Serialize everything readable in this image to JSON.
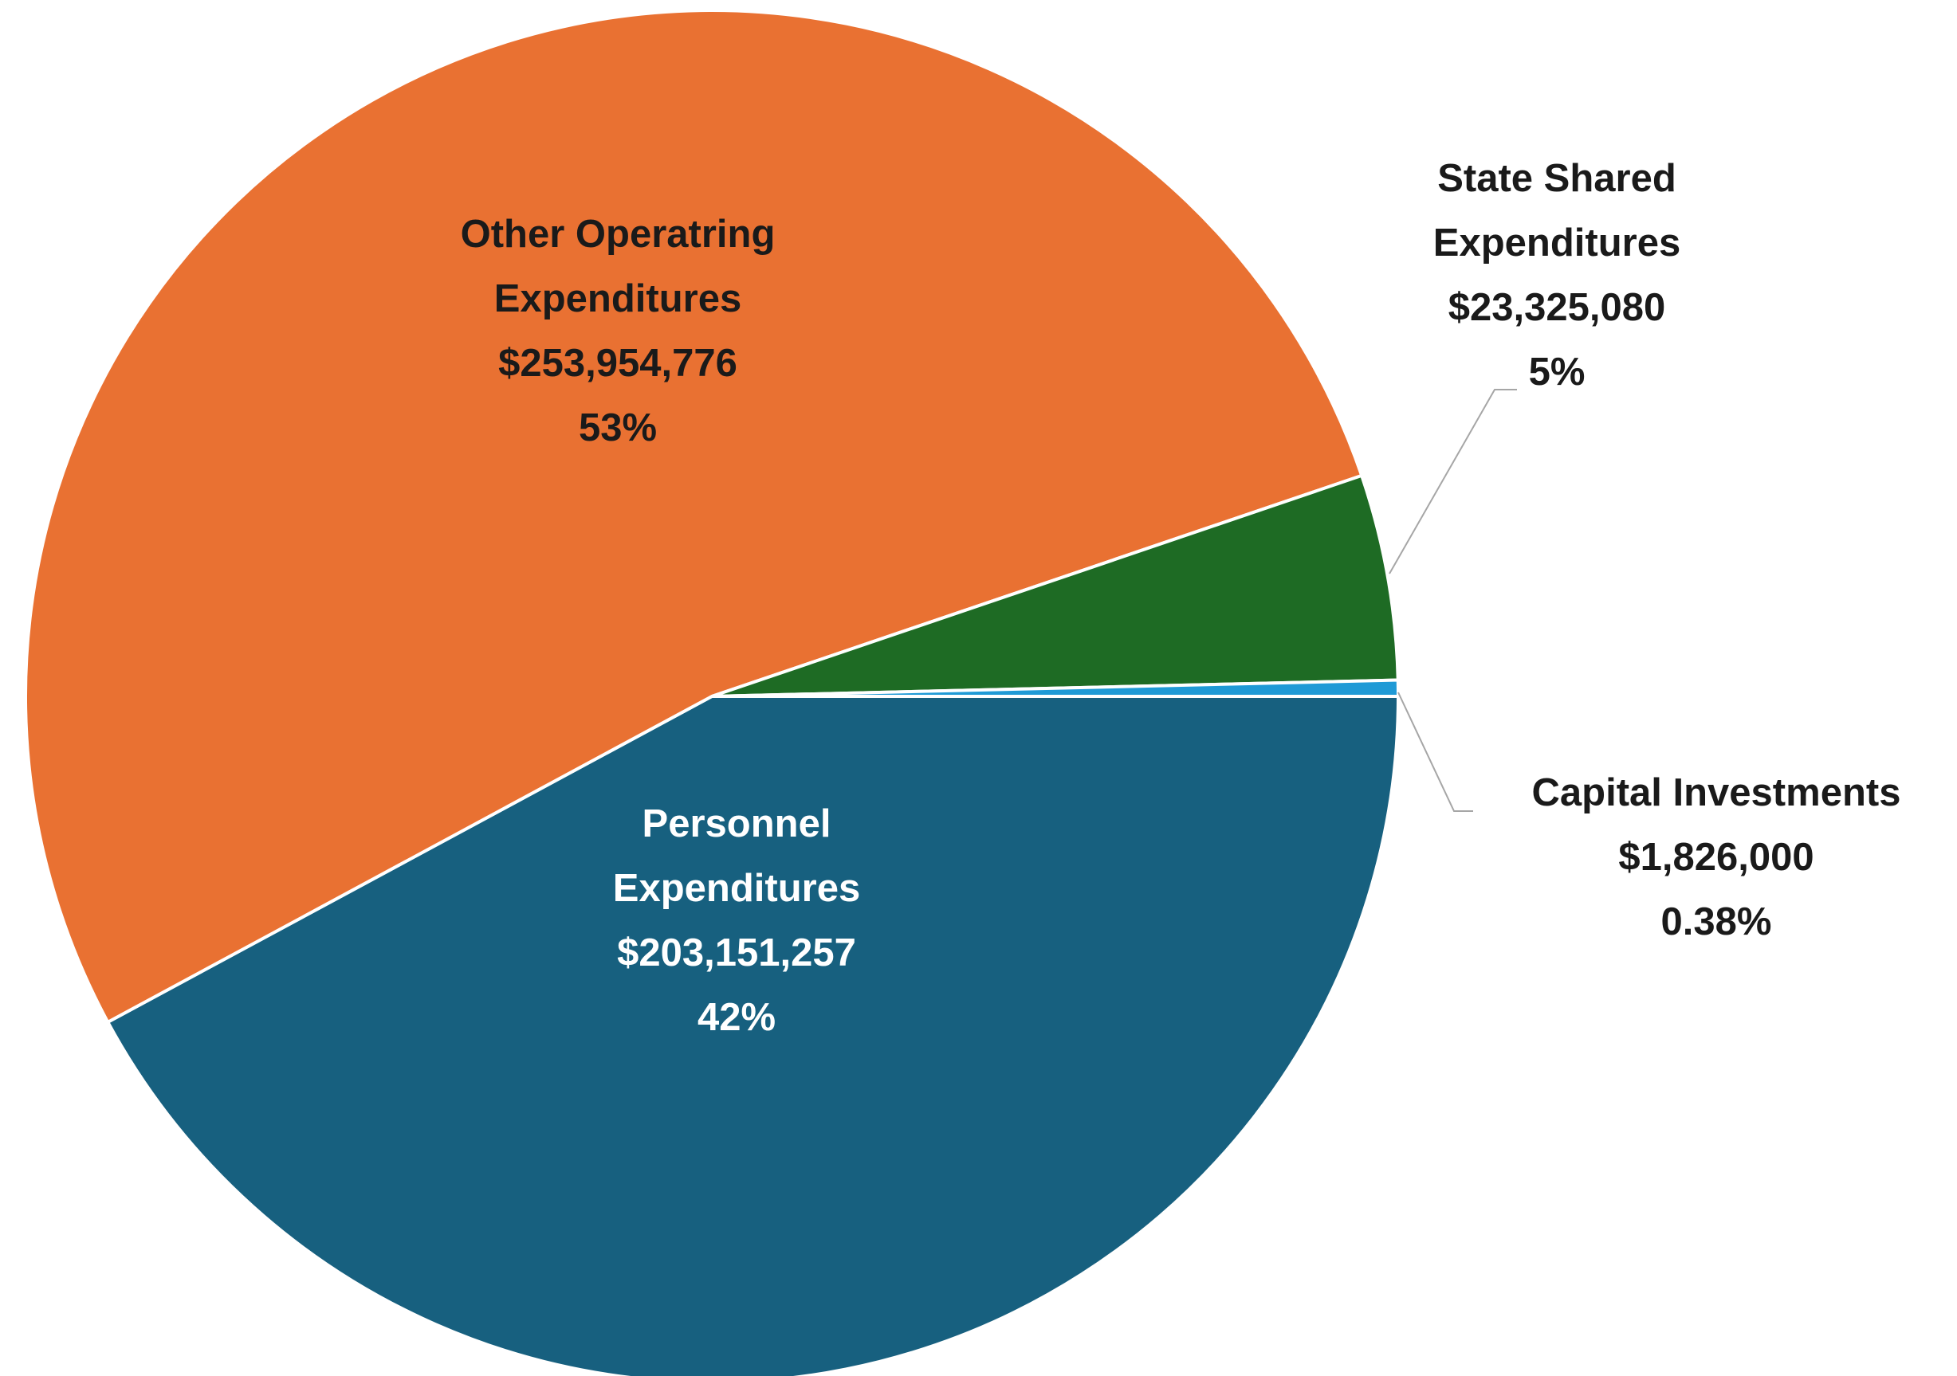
{
  "chart_data": {
    "type": "pie",
    "categories": [
      "Personnel Expenditures",
      "Other Operatring Expenditures",
      "State Shared Expenditures",
      "Capital Investments"
    ],
    "values": [
      203151257,
      253954776,
      23325080,
      1826000
    ],
    "value_labels": [
      "$203,151,257",
      "$253,954,776",
      "$23,325,080",
      "$1,826,000"
    ],
    "percent_labels": [
      "42%",
      "53%",
      "5%",
      "0.38%"
    ],
    "colors": [
      "#17607f",
      "#e97132",
      "#1e6b24",
      "#1f9ad6"
    ]
  }
}
